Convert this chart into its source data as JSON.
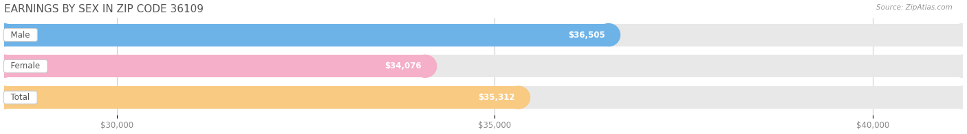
{
  "title": "EARNINGS BY SEX IN ZIP CODE 36109",
  "source": "Source: ZipAtlas.com",
  "categories": [
    "Male",
    "Female",
    "Total"
  ],
  "values": [
    36505,
    34076,
    35312
  ],
  "bar_colors": [
    "#6db3e8",
    "#f5afc8",
    "#f8ca82"
  ],
  "bar_bg_color": "#e8e8e8",
  "value_labels": [
    "$36,505",
    "$34,076",
    "$35,312"
  ],
  "xmin": 28500,
  "xmax": 41200,
  "xticks": [
    30000,
    35000,
    40000
  ],
  "xtick_labels": [
    "$30,000",
    "$35,000",
    "$40,000"
  ],
  "figsize": [
    14.06,
    1.96
  ],
  "dpi": 100,
  "background_color": "#ffffff",
  "title_fontsize": 11,
  "title_color": "#555555",
  "bar_height": 0.72,
  "label_border_color": "#cccccc",
  "text_color_dark": "#555555",
  "text_color_white": "#ffffff",
  "grid_color": "#cccccc",
  "source_color": "#999999",
  "tick_color": "#888888"
}
